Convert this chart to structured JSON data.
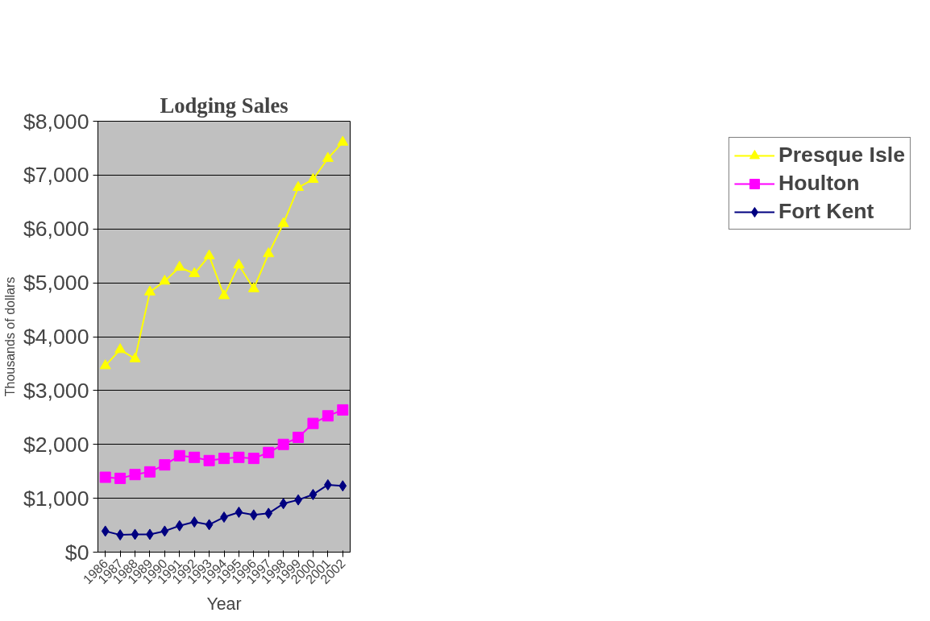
{
  "chart_data": {
    "type": "line",
    "title": "Lodging Sales",
    "xlabel": "Year",
    "ylabel": "Thousands of dollars",
    "categories": [
      "1986",
      "1987",
      "1988",
      "1989",
      "1990",
      "1991",
      "1992",
      "1993",
      "1994",
      "1995",
      "1996",
      "1997",
      "1998",
      "1999",
      "2000",
      "2001",
      "2002"
    ],
    "ylim": [
      0,
      8000
    ],
    "yticks": [
      {
        "value": 0,
        "label": "$0"
      },
      {
        "value": 1000,
        "label": "$1,000"
      },
      {
        "value": 2000,
        "label": "$2,000"
      },
      {
        "value": 3000,
        "label": "$3,000"
      },
      {
        "value": 4000,
        "label": "$4,000"
      },
      {
        "value": 5000,
        "label": "$5,000"
      },
      {
        "value": 6000,
        "label": "$6,000"
      },
      {
        "value": 7000,
        "label": "$7,000"
      },
      {
        "value": 8000,
        "label": "$8,000"
      }
    ],
    "grid": "y",
    "legend": "right",
    "series": [
      {
        "name": "Presque Isle",
        "color": "#ffff00",
        "marker": "triangle",
        "values": [
          3460,
          3760,
          3590,
          4830,
          5030,
          5290,
          5170,
          5500,
          4760,
          5330,
          4890,
          5540,
          6100,
          6770,
          6920,
          7310,
          7610
        ]
      },
      {
        "name": "Houlton",
        "color": "#ff00ff",
        "marker": "square",
        "values": [
          1390,
          1370,
          1440,
          1490,
          1620,
          1790,
          1760,
          1700,
          1740,
          1760,
          1740,
          1850,
          2000,
          2130,
          2390,
          2530,
          2640
        ]
      },
      {
        "name": "Fort Kent",
        "color": "#000080",
        "marker": "diamond",
        "values": [
          390,
          320,
          330,
          330,
          390,
          490,
          560,
          510,
          650,
          740,
          690,
          720,
          900,
          970,
          1070,
          1250,
          1230
        ]
      }
    ]
  }
}
